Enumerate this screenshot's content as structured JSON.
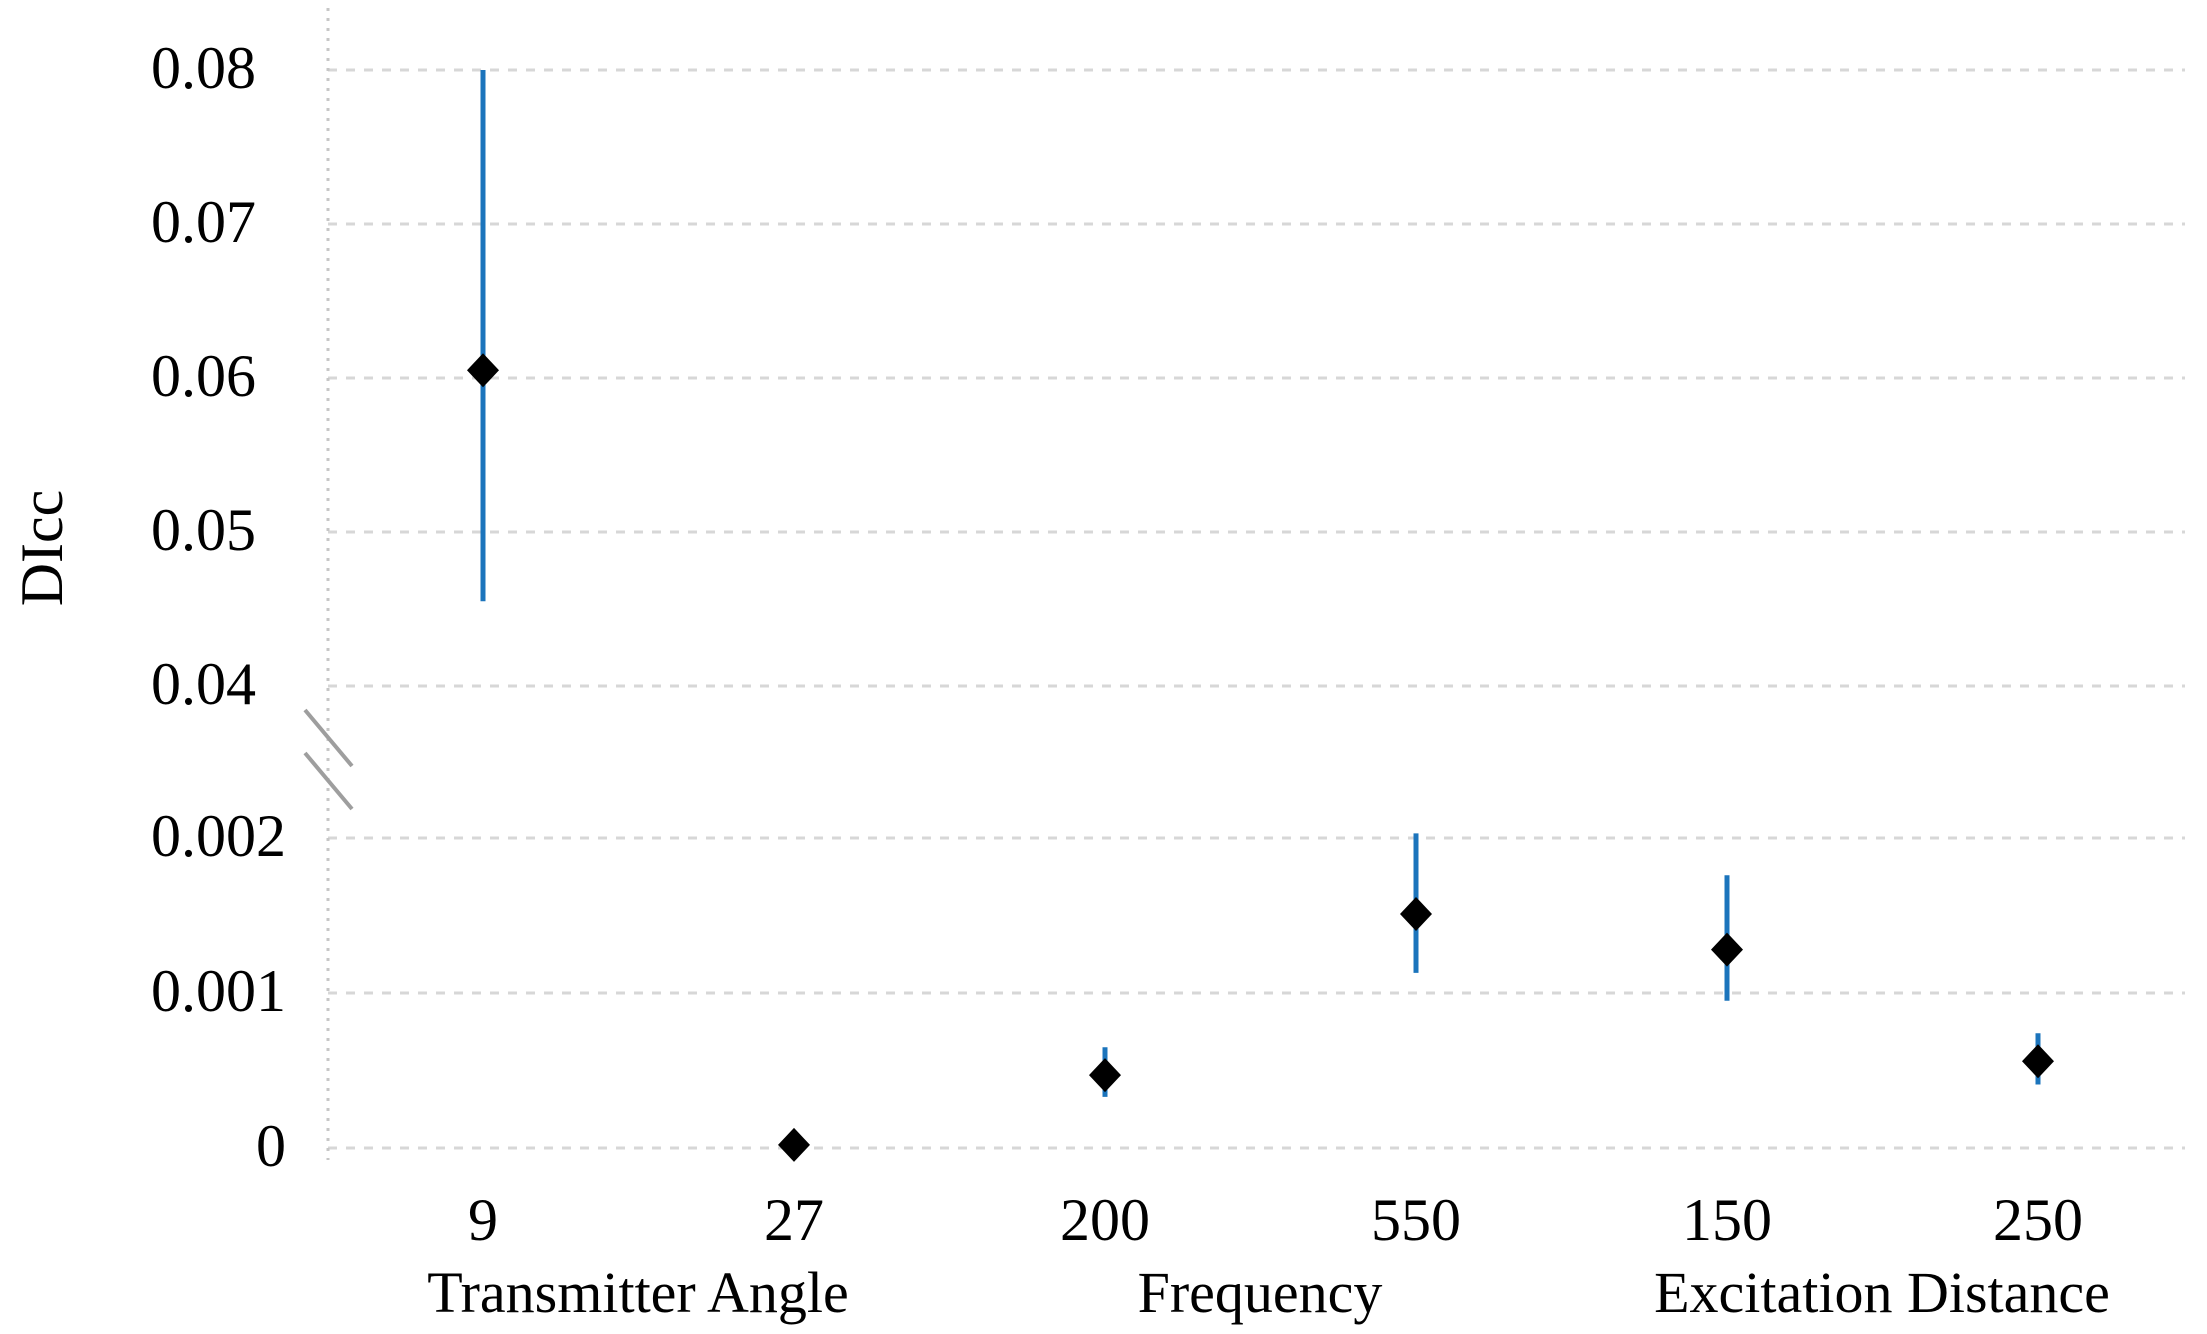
{
  "chart_data": {
    "type": "scatter",
    "title": "",
    "ylabel": "DIcc",
    "xlabel": "",
    "grid": true,
    "legend": "none",
    "y_axis": {
      "broken": true,
      "upper_range": [
        0.04,
        0.08
      ],
      "lower_range": [
        0,
        0.002
      ],
      "upper_tick_values": [
        0.08,
        0.07,
        0.06,
        0.05,
        0.04
      ],
      "upper_tick_labels": [
        "0.08",
        "0.07",
        "0.06",
        "0.05",
        "0.04"
      ],
      "lower_tick_values": [
        0.002,
        0.001,
        0
      ],
      "lower_tick_labels": [
        "0.002",
        "0.001",
        "0"
      ]
    },
    "groups": [
      {
        "label": "Transmitter Angle",
        "categories": [
          "9",
          "27"
        ]
      },
      {
        "label": "Frequency",
        "categories": [
          "200",
          "550"
        ]
      },
      {
        "label": "Excitation Distance",
        "categories": [
          "150",
          "250"
        ]
      }
    ],
    "points": [
      {
        "x_label": "9",
        "group": "Transmitter Angle",
        "y": 0.0605,
        "err_low": 0.0455,
        "err_high": 0.08,
        "section": "upper"
      },
      {
        "x_label": "27",
        "group": "Transmitter Angle",
        "y": 2e-05,
        "err_low": null,
        "err_high": null,
        "section": "lower"
      },
      {
        "x_label": "200",
        "group": "Frequency",
        "y": 0.00047,
        "err_low": 0.00033,
        "err_high": 0.00065,
        "section": "lower"
      },
      {
        "x_label": "550",
        "group": "Frequency",
        "y": 0.00151,
        "err_low": 0.00113,
        "err_high": 0.00203,
        "section": "lower"
      },
      {
        "x_label": "150",
        "group": "Excitation Distance",
        "y": 0.00128,
        "err_low": 0.00095,
        "err_high": 0.00176,
        "section": "lower"
      },
      {
        "x_label": "250",
        "group": "Excitation Distance",
        "y": 0.00056,
        "err_low": 0.00041,
        "err_high": 0.00074,
        "section": "lower"
      }
    ],
    "colors": {
      "error_bar": "#1B74BC",
      "marker": "#000000",
      "gridline": "#D7D7D7",
      "axis_line": "#C6C6C6",
      "break_marks": "#9E9E9E",
      "text": "#000000"
    }
  }
}
